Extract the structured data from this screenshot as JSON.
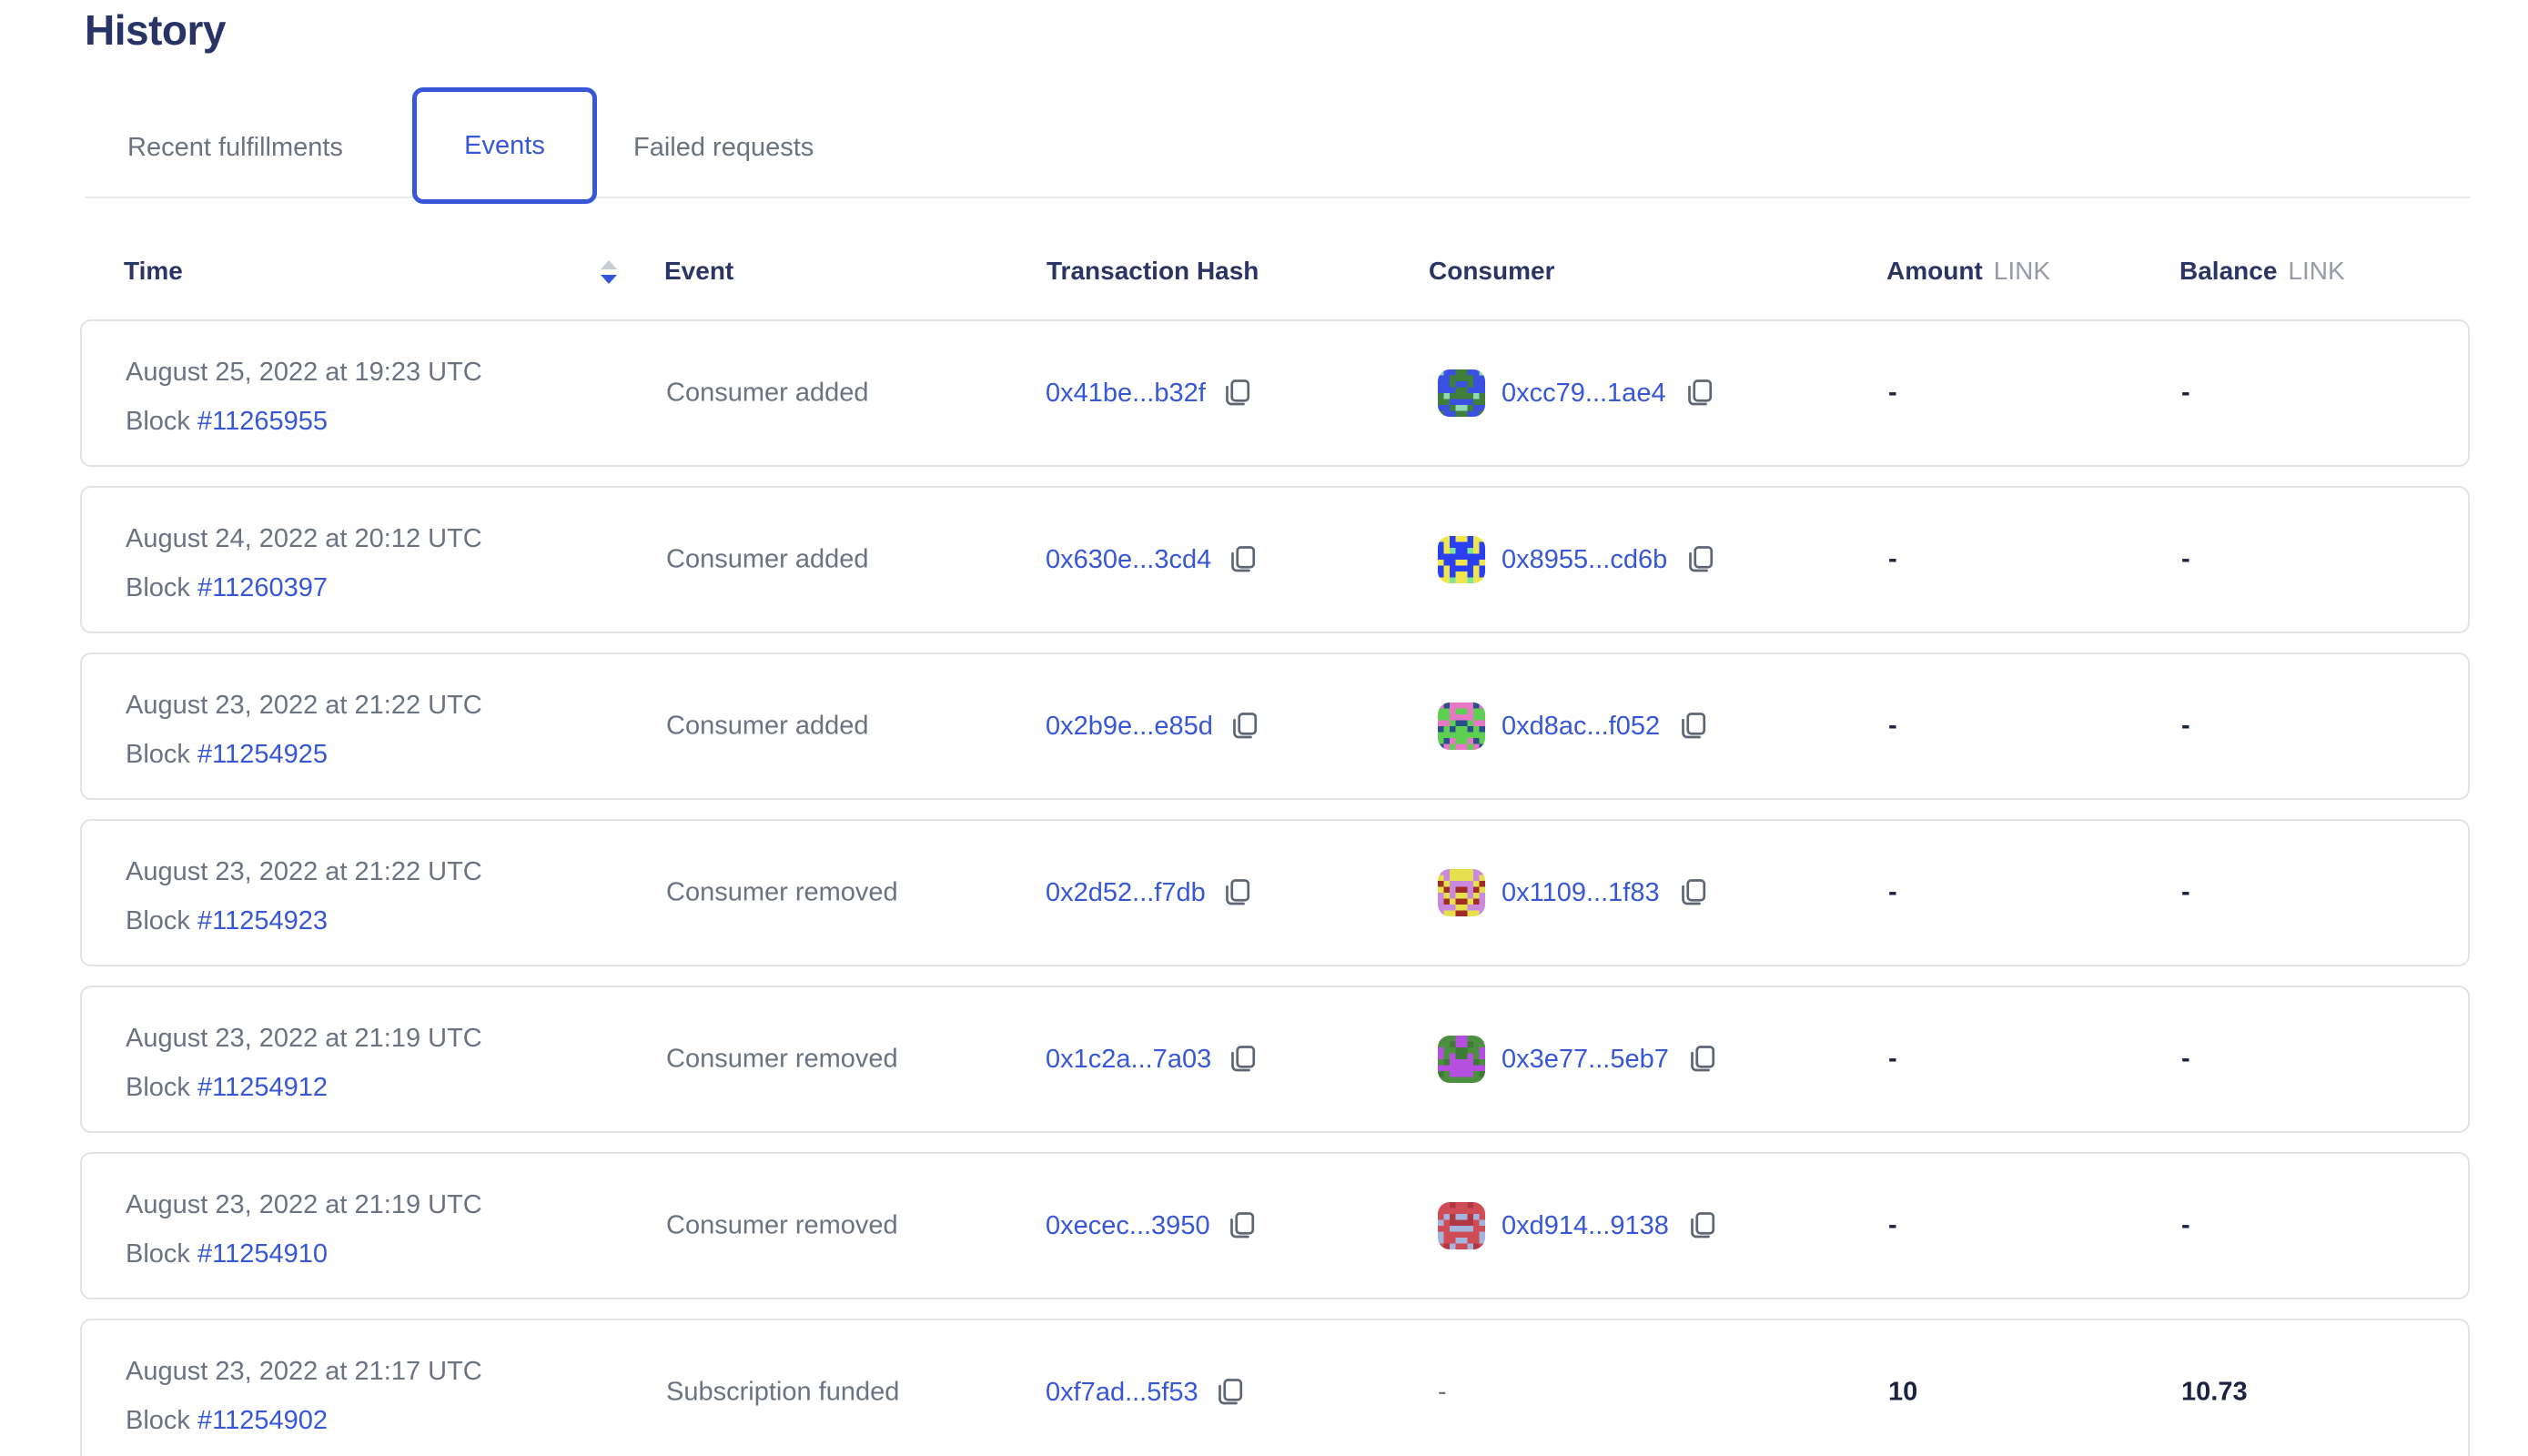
{
  "page": {
    "title": "History"
  },
  "tabs": [
    {
      "label": "Recent fulfillments",
      "selected": false
    },
    {
      "label": "Events",
      "selected": true
    },
    {
      "label": "Failed requests",
      "selected": false
    }
  ],
  "colors": {
    "accent_blue": "#3757d8",
    "heading_navy": "#283366",
    "body_gray": "#6b7280",
    "value_navy": "#1b2340",
    "card_border": "#e2e3e6"
  },
  "table": {
    "columns": {
      "time": "Time",
      "event": "Event",
      "tx_hash": "Transaction Hash",
      "consumer": "Consumer",
      "amount": "Amount",
      "balance": "Balance",
      "unit": "LINK"
    },
    "sort": {
      "column": "Time",
      "direction": "descending"
    },
    "labels": {
      "block": "Block"
    },
    "rows": [
      {
        "date": "August 25, 2022 at 19:23 UTC",
        "block": "#11265955",
        "event": "Consumer added",
        "tx_hash": "0x41be...b32f",
        "consumer": "0xcc79...1ae4",
        "amount": "-",
        "balance": "-",
        "avatar": {
          "bg": "#3f7f3a",
          "fg": "#3b4fe0",
          "spot": "#8fd9b8"
        }
      },
      {
        "date": "August 24, 2022 at 20:12 UTC",
        "block": "#11260397",
        "event": "Consumer added",
        "tx_hash": "0x630e...3cd4",
        "consumer": "0x8955...cd6b",
        "amount": "-",
        "balance": "-",
        "avatar": {
          "bg": "#2b3ff2",
          "fg": "#efe64d",
          "spot": "#7de59c"
        }
      },
      {
        "date": "August 23, 2022 at 21:22 UTC",
        "block": "#11254925",
        "event": "Consumer added",
        "tx_hash": "0x2b9e...e85d",
        "consumer": "0xd8ac...f052",
        "amount": "-",
        "balance": "-",
        "avatar": {
          "bg": "#5ecf52",
          "fg": "#e878c5",
          "spot": "#2c4f8a"
        }
      },
      {
        "date": "August 23, 2022 at 21:22 UTC",
        "block": "#11254923",
        "event": "Consumer removed",
        "tx_hash": "0x2d52...f7db",
        "consumer": "0x1109...1f83",
        "amount": "-",
        "balance": "-",
        "avatar": {
          "bg": "#c98ade",
          "fg": "#e7e04e",
          "spot": "#a02c24"
        }
      },
      {
        "date": "August 23, 2022 at 21:19 UTC",
        "block": "#11254912",
        "event": "Consumer removed",
        "tx_hash": "0x1c2a...7a03",
        "consumer": "0x3e77...5eb7",
        "amount": "-",
        "balance": "-",
        "avatar": {
          "bg": "#4d8f40",
          "fg": "#b44fe0",
          "spot": "#3d7a33"
        }
      },
      {
        "date": "August 23, 2022 at 21:19 UTC",
        "block": "#11254910",
        "event": "Consumer removed",
        "tx_hash": "0xecec...3950",
        "consumer": "0xd914...9138",
        "amount": "-",
        "balance": "-",
        "avatar": {
          "bg": "#cf4b55",
          "fg": "#a3b5dc",
          "spot": "#b33743"
        }
      },
      {
        "date": "August 23, 2022 at 21:17 UTC",
        "block": "#11254902",
        "event": "Subscription funded",
        "tx_hash": "0xf7ad...5f53",
        "consumer": "-",
        "amount": "10",
        "balance": "10.73",
        "avatar": null
      }
    ]
  }
}
